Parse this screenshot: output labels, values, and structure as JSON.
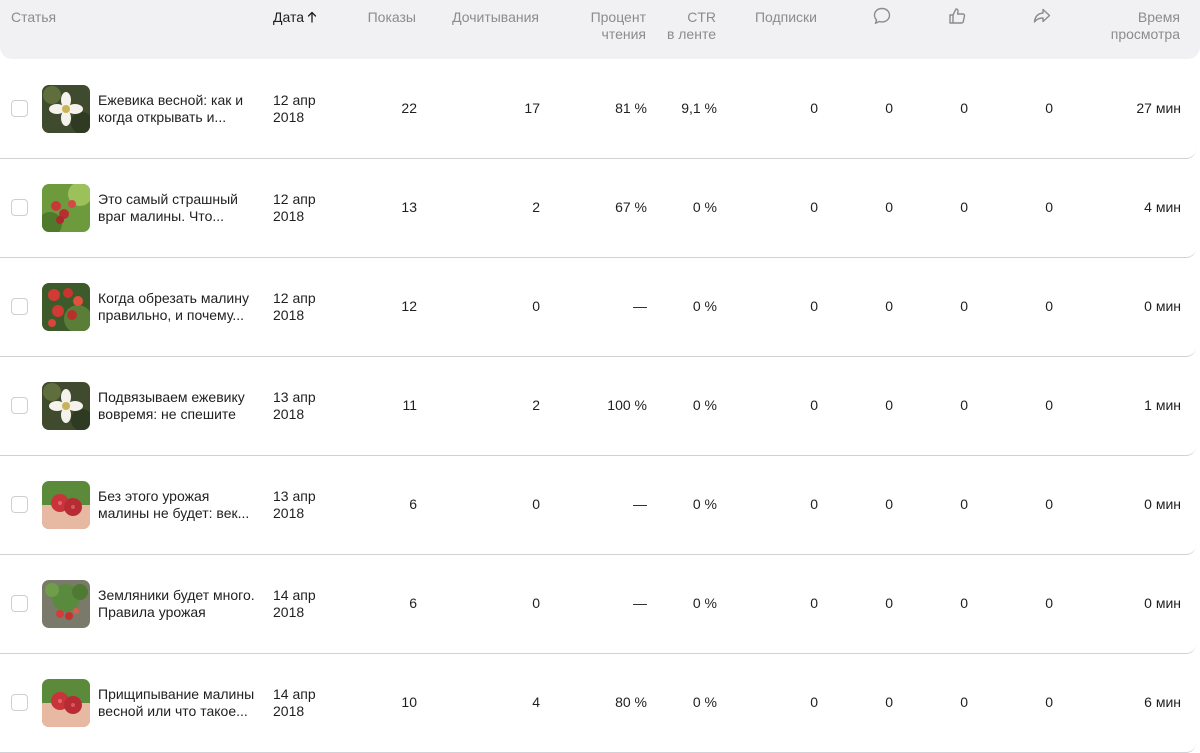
{
  "header": {
    "article": "Статья",
    "date": "Дата",
    "impressions": "Показы",
    "reads": "Дочитывания",
    "read_percent_1": "Процент",
    "read_percent_2": "чтения",
    "ctr_1": "CTR",
    "ctr_2": "в ленте",
    "subscriptions": "Подписки",
    "comments_icon": "comment-icon",
    "likes_icon": "thumbs-up-icon",
    "shares_icon": "share-icon",
    "time_1": "Время",
    "time_2": "просмотра"
  },
  "rows": [
    {
      "title_1": "Ежевика весной: как и",
      "title_2": "когда открывать и...",
      "date_1": "12 апр",
      "date_2": "2018",
      "impressions": "22",
      "reads": "17",
      "read_percent": "81 %",
      "ctr": "9,1 %",
      "subscriptions": "0",
      "comments": "0",
      "likes": "0",
      "shares": "0",
      "time": "27 мин",
      "thumb": "blackberry-flower"
    },
    {
      "title_1": "Это самый страшный",
      "title_2": "враг малины. Что...",
      "date_1": "12 апр",
      "date_2": "2018",
      "impressions": "13",
      "reads": "2",
      "read_percent": "67 %",
      "ctr": "0 %",
      "subscriptions": "0",
      "comments": "0",
      "likes": "0",
      "shares": "0",
      "time": "4 мин",
      "thumb": "raspberry-bush"
    },
    {
      "title_1": "Когда обрезать малину",
      "title_2": "правильно, и почему...",
      "date_1": "12 апр",
      "date_2": "2018",
      "impressions": "12",
      "reads": "0",
      "read_percent": "—",
      "ctr": "0 %",
      "subscriptions": "0",
      "comments": "0",
      "likes": "0",
      "shares": "0",
      "time": "0 мин",
      "thumb": "raspberry-cluster"
    },
    {
      "title_1": "Подвязываем ежевику",
      "title_2": "вовремя: не спешите",
      "date_1": "13 апр",
      "date_2": "2018",
      "impressions": "11",
      "reads": "2",
      "read_percent": "100 %",
      "ctr": "0 %",
      "subscriptions": "0",
      "comments": "0",
      "likes": "0",
      "shares": "0",
      "time": "1 мин",
      "thumb": "blackberry-flower"
    },
    {
      "title_1": "Без этого урожая",
      "title_2": "малины не будет: век...",
      "date_1": "13 апр",
      "date_2": "2018",
      "impressions": "6",
      "reads": "0",
      "read_percent": "—",
      "ctr": "0 %",
      "subscriptions": "0",
      "comments": "0",
      "likes": "0",
      "shares": "0",
      "time": "0 мин",
      "thumb": "raspberries-hand"
    },
    {
      "title_1": "Земляники будет много.",
      "title_2": "Правила урожая",
      "date_1": "14 апр",
      "date_2": "2018",
      "impressions": "6",
      "reads": "0",
      "read_percent": "—",
      "ctr": "0 %",
      "subscriptions": "0",
      "comments": "0",
      "likes": "0",
      "shares": "0",
      "time": "0 мин",
      "thumb": "strawberry-plant"
    },
    {
      "title_1": "Прищипывание малины",
      "title_2": "весной или что такое...",
      "date_1": "14 апр",
      "date_2": "2018",
      "impressions": "10",
      "reads": "4",
      "read_percent": "80 %",
      "ctr": "0 %",
      "subscriptions": "0",
      "comments": "0",
      "likes": "0",
      "shares": "0",
      "time": "6 мин",
      "thumb": "raspberries-hand"
    }
  ]
}
